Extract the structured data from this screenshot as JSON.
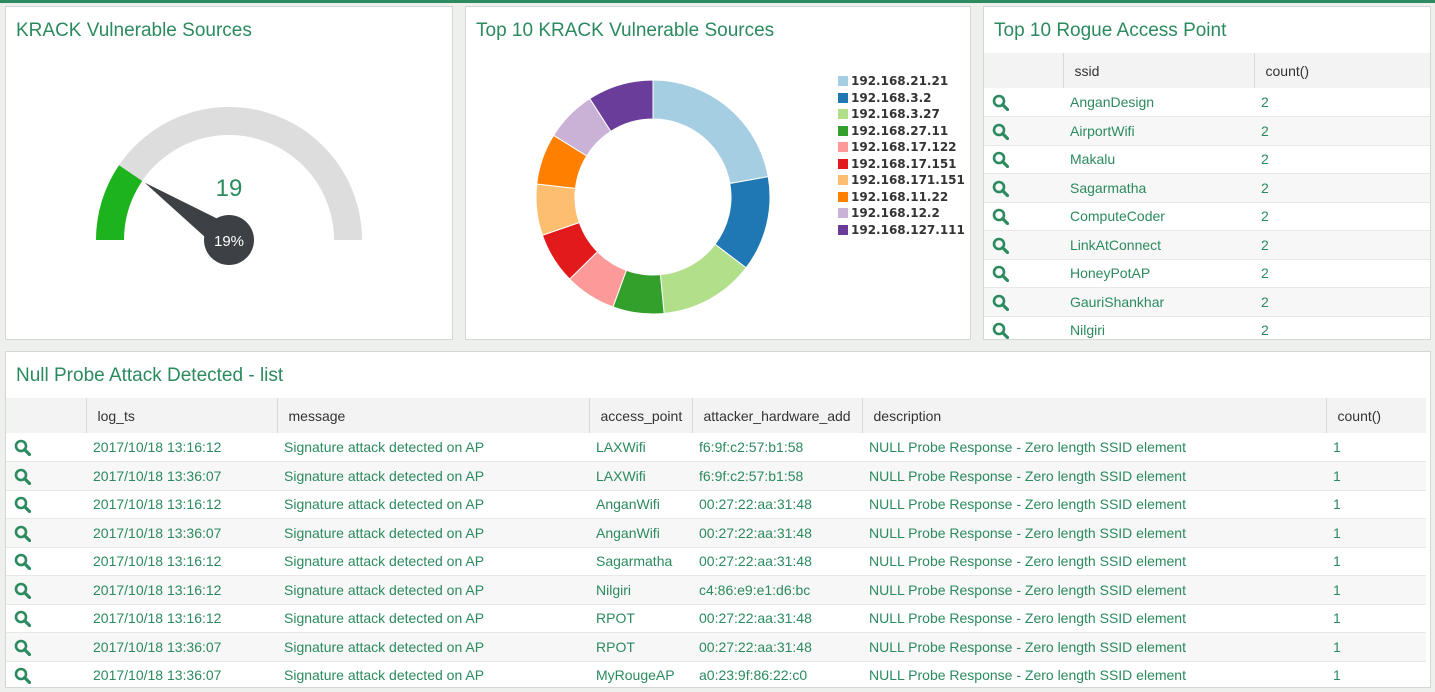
{
  "colors": {
    "accent": "#2b8a5e",
    "gauge_fill": "#1db31d",
    "gauge_track": "#dddddd",
    "needle": "#3d4146"
  },
  "gauge_panel": {
    "title": "KRACK Vulnerable Sources",
    "value": "19",
    "percent_label": "19%",
    "percent": 19
  },
  "donut_panel": {
    "title": "Top 10 KRACK Vulnerable Sources"
  },
  "chart_data": {
    "type": "pie",
    "donut": true,
    "legend_position": "right",
    "categories": [
      "192.168.21.21",
      "192.168.3.2",
      "192.168.3.27",
      "192.168.27.11",
      "192.168.17.122",
      "192.168.17.151",
      "192.168.171.151",
      "192.168.11.22",
      "192.168.12.2",
      "192.168.127.111"
    ],
    "values": [
      22,
      13,
      13,
      7,
      7,
      7,
      7,
      7,
      7,
      9
    ],
    "colors": [
      "#a6cee3",
      "#1f78b4",
      "#b2df8a",
      "#33a02c",
      "#fb9a99",
      "#e31a1c",
      "#fdbf6f",
      "#ff7f00",
      "#cab2d6",
      "#6a3d9a"
    ]
  },
  "rogue_panel": {
    "title": "Top 10 Rogue Access Point",
    "columns": [
      "",
      "ssid",
      "count()"
    ],
    "rows": [
      {
        "ssid": "AnganDesign",
        "count": "2"
      },
      {
        "ssid": "AirportWifi",
        "count": "2"
      },
      {
        "ssid": "Makalu",
        "count": "2"
      },
      {
        "ssid": "Sagarmatha",
        "count": "2"
      },
      {
        "ssid": "ComputeCoder",
        "count": "2"
      },
      {
        "ssid": "LinkAtConnect",
        "count": "2"
      },
      {
        "ssid": "HoneyPotAP",
        "count": "2"
      },
      {
        "ssid": "GauriShankhar",
        "count": "2"
      },
      {
        "ssid": "Nilgiri",
        "count": "2"
      }
    ]
  },
  "null_panel": {
    "title": "Null Probe Attack Detected - list",
    "columns": [
      "",
      "log_ts",
      "message",
      "access_point",
      "attacker_hardware_add",
      "description",
      "count()"
    ],
    "rows": [
      {
        "log_ts": "2017/10/18 13:16:12",
        "message": "Signature attack detected on AP",
        "access_point": "LAXWifi",
        "attacker": "f6:9f:c2:57:b1:58",
        "description": "NULL Probe Response - Zero length SSID element",
        "count": "1"
      },
      {
        "log_ts": "2017/10/18 13:36:07",
        "message": "Signature attack detected on AP",
        "access_point": "LAXWifi",
        "attacker": "f6:9f:c2:57:b1:58",
        "description": "NULL Probe Response - Zero length SSID element",
        "count": "1"
      },
      {
        "log_ts": "2017/10/18 13:16:12",
        "message": "Signature attack detected on AP",
        "access_point": "AnganWifi",
        "attacker": "00:27:22:aa:31:48",
        "description": "NULL Probe Response - Zero length SSID element",
        "count": "1"
      },
      {
        "log_ts": "2017/10/18 13:36:07",
        "message": "Signature attack detected on AP",
        "access_point": "AnganWifi",
        "attacker": "00:27:22:aa:31:48",
        "description": "NULL Probe Response - Zero length SSID element",
        "count": "1"
      },
      {
        "log_ts": "2017/10/18 13:16:12",
        "message": "Signature attack detected on AP",
        "access_point": "Sagarmatha",
        "attacker": "00:27:22:aa:31:48",
        "description": "NULL Probe Response - Zero length SSID element",
        "count": "1"
      },
      {
        "log_ts": "2017/10/18 13:16:12",
        "message": "Signature attack detected on AP",
        "access_point": "Nilgiri",
        "attacker": "c4:86:e9:e1:d6:bc",
        "description": "NULL Probe Response - Zero length SSID element",
        "count": "1"
      },
      {
        "log_ts": "2017/10/18 13:16:12",
        "message": "Signature attack detected on AP",
        "access_point": "RPOT",
        "attacker": "00:27:22:aa:31:48",
        "description": "NULL Probe Response - Zero length SSID element",
        "count": "1"
      },
      {
        "log_ts": "2017/10/18 13:36:07",
        "message": "Signature attack detected on AP",
        "access_point": "RPOT",
        "attacker": "00:27:22:aa:31:48",
        "description": "NULL Probe Response - Zero length SSID element",
        "count": "1"
      },
      {
        "log_ts": "2017/10/18 13:36:07",
        "message": "Signature attack detected on AP",
        "access_point": "MyRougeAP",
        "attacker": "a0:23:9f:86:22:c0",
        "description": "NULL Probe Response - Zero length SSID element",
        "count": "1"
      }
    ]
  }
}
